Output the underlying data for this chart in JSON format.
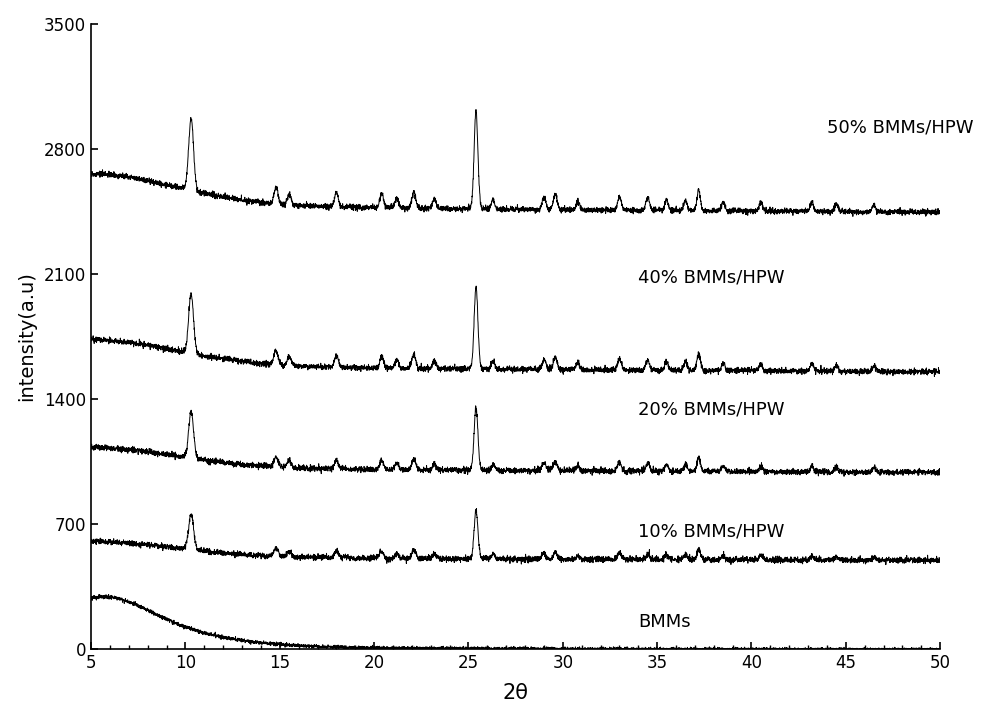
{
  "title": "",
  "xlabel": "2θ",
  "ylabel": "intensity(a.u)",
  "xlim": [
    5,
    50
  ],
  "ylim": [
    0,
    3500
  ],
  "yticks": [
    0,
    700,
    1400,
    2100,
    2800,
    3500
  ],
  "xticks": [
    5,
    10,
    15,
    20,
    25,
    30,
    35,
    40,
    45,
    50
  ],
  "labels": [
    "BMMs",
    "10% BMMs/HPW",
    "20% BMMs/HPW",
    "40% BMMs/HPW",
    "50% BMMs/HPW"
  ],
  "color": "#000000",
  "background_color": "#ffffff",
  "linewidth": 0.7,
  "noise_amplitude": 8,
  "offsets": [
    0,
    490,
    980,
    1540,
    2430
  ]
}
